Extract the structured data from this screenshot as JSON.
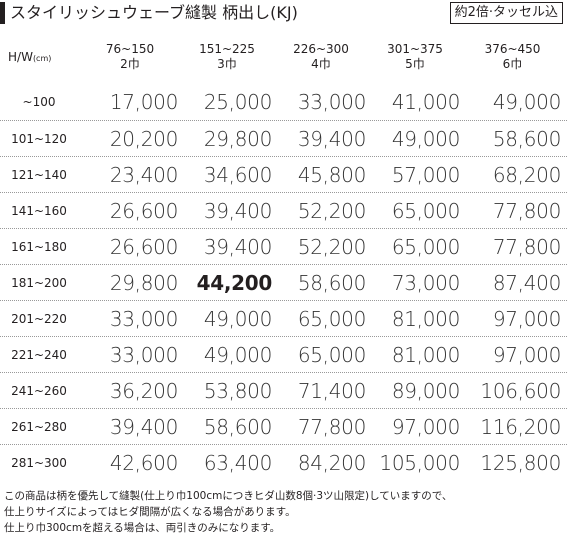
{
  "header": {
    "title": "スタイリッシュウェーブ縫製 柄出し(KJ)",
    "badge": "約2倍·タッセル込"
  },
  "table": {
    "corner": {
      "main": "H/W",
      "unit": "(cm)"
    },
    "columns": [
      {
        "range": "76~150",
        "width": "2巾"
      },
      {
        "range": "151~225",
        "width": "3巾"
      },
      {
        "range": "226~300",
        "width": "4巾"
      },
      {
        "range": "301~375",
        "width": "5巾"
      },
      {
        "range": "376~450",
        "width": "6巾"
      }
    ],
    "rows": [
      {
        "height": "~100",
        "prices": [
          "17,000",
          "25,000",
          "33,000",
          "41,000",
          "49,000"
        ]
      },
      {
        "height": "101~120",
        "prices": [
          "20,200",
          "29,800",
          "39,400",
          "49,000",
          "58,600"
        ]
      },
      {
        "height": "121~140",
        "prices": [
          "23,400",
          "34,600",
          "45,800",
          "57,000",
          "68,200"
        ]
      },
      {
        "height": "141~160",
        "prices": [
          "26,600",
          "39,400",
          "52,200",
          "65,000",
          "77,800"
        ]
      },
      {
        "height": "161~180",
        "prices": [
          "26,600",
          "39,400",
          "52,200",
          "65,000",
          "77,800"
        ]
      },
      {
        "height": "181~200",
        "prices": [
          "29,800",
          "44,200",
          "58,600",
          "73,000",
          "87,400"
        ]
      },
      {
        "height": "201~220",
        "prices": [
          "33,000",
          "49,000",
          "65,000",
          "81,000",
          "97,000"
        ]
      },
      {
        "height": "221~240",
        "prices": [
          "33,000",
          "49,000",
          "65,000",
          "81,000",
          "97,000"
        ]
      },
      {
        "height": "241~260",
        "prices": [
          "36,200",
          "53,800",
          "71,400",
          "89,000",
          "106,600"
        ]
      },
      {
        "height": "261~280",
        "prices": [
          "39,400",
          "58,600",
          "77,800",
          "97,000",
          "116,200"
        ]
      },
      {
        "height": "281~300",
        "prices": [
          "42,600",
          "63,400",
          "84,200",
          "105,000",
          "125,800"
        ]
      }
    ]
  },
  "notes": [
    "この商品は柄を優先して縫製(仕上り巾100cmにつきヒダ山数8個·3ツ山限定)していますので、",
    "仕上りサイズによってはヒダ間隔が広くなる場合があります。",
    "仕上り巾300cmを超える場合は、両引きのみになります。"
  ]
}
